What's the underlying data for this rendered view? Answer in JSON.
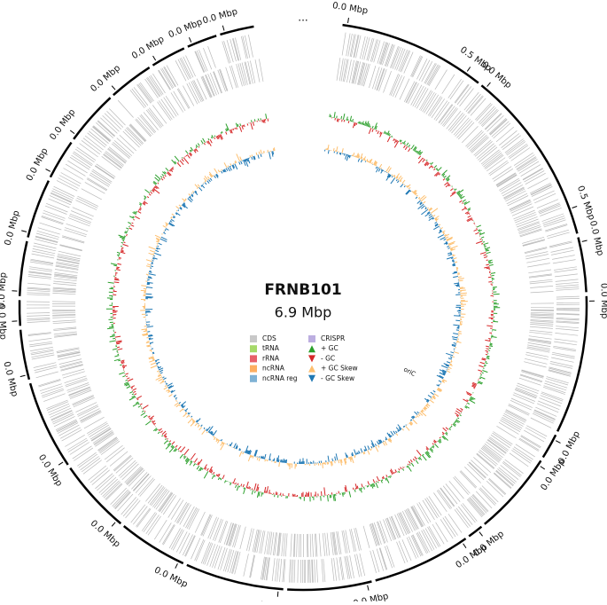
{
  "title": "FRNB101",
  "subtitle": "6.9 Mbp",
  "ellipsis": "...",
  "origin_label": "oriC",
  "segment_labels": [
    "0.0 Mbp",
    "0.5 Mbp",
    "0.0 Mbp",
    "0.5 Mbp",
    "0.0 Mbp",
    "0.0 Mbp",
    "0.0 Mbp",
    "0.0 Mbp",
    "0.0 Mbp",
    "0.0 Mbp",
    "0.0 Mbp",
    "0.0 Mbp",
    "0.0 Mbp",
    "0.0 Mbp",
    "0.0 Mbp",
    "0.0 Mbp",
    "0.0 Mbp",
    "0.0 Mbp",
    "0.0 Mbp",
    "0.0 Mbp",
    "0.0 Mbp",
    "0.0 Mbp",
    "0.0 Mbp",
    "0.0 Mbp",
    "0.0 Mbp"
  ],
  "legend": [
    {
      "label": "CDS",
      "color": "#c8c8c8",
      "shape": "square"
    },
    {
      "label": "tRNA",
      "color": "#a6d96a",
      "shape": "square"
    },
    {
      "label": "rRNA",
      "color": "#e7606a",
      "shape": "square"
    },
    {
      "label": "ncRNA",
      "color": "#fdae61",
      "shape": "square"
    },
    {
      "label": "ncRNA reg",
      "color": "#7fb2d5",
      "shape": "square"
    },
    {
      "label": "CRISPR",
      "color": "#bcaee0",
      "shape": "square"
    },
    {
      "label": "+ GC",
      "color": "#2ca02c",
      "shape": "up"
    },
    {
      "label": "- GC",
      "color": "#d62728",
      "shape": "down"
    },
    {
      "label": "+ GC Skew",
      "color": "#fdbf6f",
      "shape": "up"
    },
    {
      "label": "- GC Skew",
      "color": "#1f78b4",
      "shape": "down"
    }
  ]
}
